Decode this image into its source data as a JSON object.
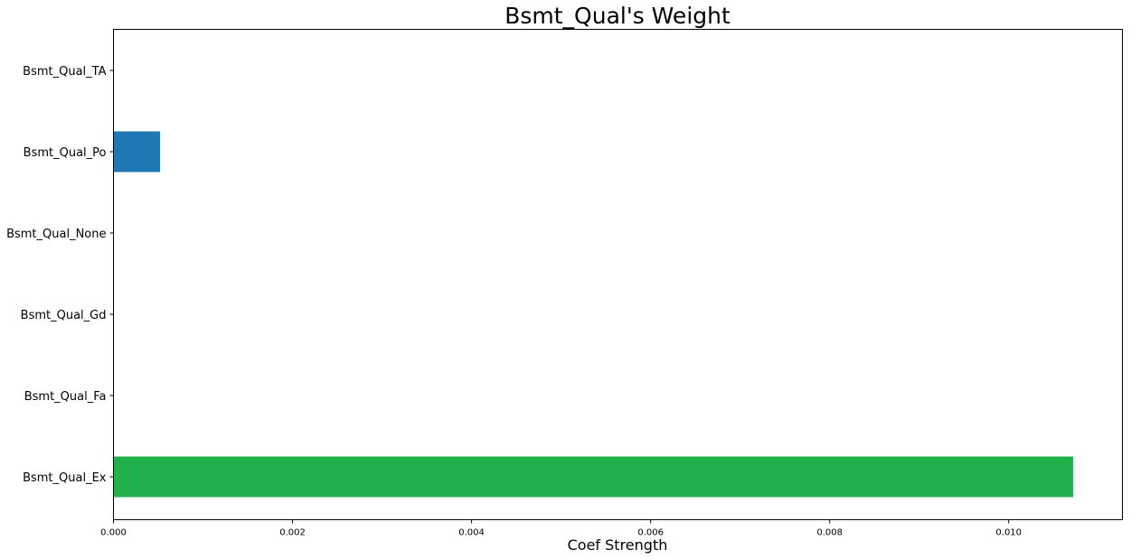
{
  "chart_data": {
    "type": "bar",
    "orientation": "horizontal",
    "title": "Bsmt_Qual's Weight",
    "xlabel": "Coef Strength",
    "ylabel": "",
    "categories": [
      "Bsmt_Qual_Ex",
      "Bsmt_Qual_Fa",
      "Bsmt_Qual_Gd",
      "Bsmt_Qual_None",
      "Bsmt_Qual_Po",
      "Bsmt_Qual_TA"
    ],
    "values": [
      0.01072,
      0.0,
      0.0,
      0.0,
      0.00052,
      0.0
    ],
    "bar_colors": [
      "#23b14d",
      "#1f77b4",
      "#1f77b4",
      "#1f77b4",
      "#1f77b4",
      "#1f77b4"
    ],
    "xlim": [
      0,
      0.01127
    ],
    "xticks": [
      0.0,
      0.002,
      0.004,
      0.006,
      0.008,
      0.01
    ],
    "xtick_labels": [
      "0.000",
      "0.002",
      "0.004",
      "0.006",
      "0.008",
      "0.010"
    ],
    "grid": false,
    "legend": "none"
  }
}
